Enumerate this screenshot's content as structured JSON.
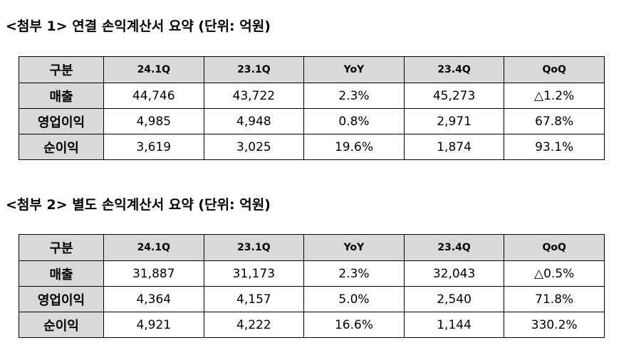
{
  "section1": {
    "title": "<첨부 1> 연결 손익계산서 요약 (단위: 억원)",
    "headers": [
      "구분",
      "24.1Q",
      "23.1Q",
      "YoY",
      "23.4Q",
      "QoQ"
    ],
    "rows": [
      {
        "label": "매출",
        "values": [
          "44,746",
          "43,722",
          "2.3%",
          "45,273",
          "△1.2%"
        ]
      },
      {
        "label": "영업이익",
        "values": [
          "4,985",
          "4,948",
          "0.8%",
          "2,971",
          "67.8%"
        ]
      },
      {
        "label": "순이익",
        "values": [
          "3,619",
          "3,025",
          "19.6%",
          "1,874",
          "93.1%"
        ]
      }
    ]
  },
  "section2": {
    "title": "<첨부 2> 별도 손익계산서 요약 (단위: 억원)",
    "headers": [
      "구분",
      "24.1Q",
      "23.1Q",
      "YoY",
      "23.4Q",
      "QoQ"
    ],
    "rows": [
      {
        "label": "매출",
        "values": [
          "31,887",
          "31,173",
          "2.3%",
          "32,043",
          "△0.5%"
        ]
      },
      {
        "label": "영업이익",
        "values": [
          "4,364",
          "4,157",
          "5.0%",
          "2,540",
          "71.8%"
        ]
      },
      {
        "label": "순이익",
        "values": [
          "4,921",
          "4,222",
          "16.6%",
          "1,144",
          "330.2%"
        ]
      }
    ]
  }
}
